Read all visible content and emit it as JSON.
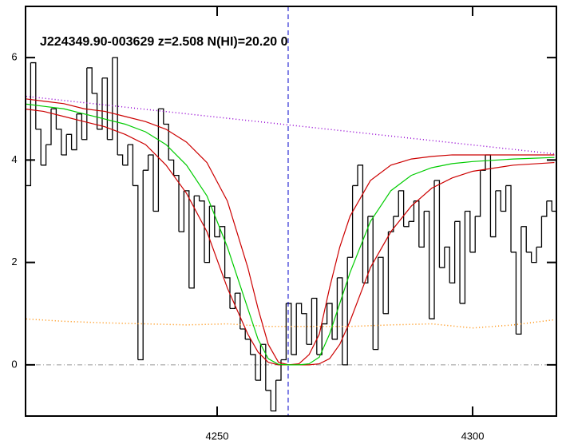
{
  "chart_data": {
    "type": "line",
    "title": "J224349.90-003629 z=2.508 N(HI)=20.20 0",
    "xlim": [
      4212.5,
      4316.4
    ],
    "ylim": [
      -1,
      7
    ],
    "xticks": [
      4250,
      4300
    ],
    "yticks": [
      0,
      2,
      4,
      6
    ],
    "hline": 0,
    "vline": 4263.9,
    "series": [
      {
        "type": "step",
        "color": "#000000",
        "dash": "none",
        "x": [
          4213,
          4214,
          4215,
          4216,
          4217,
          4218,
          4219,
          4220,
          4221,
          4222,
          4223,
          4224,
          4225,
          4226,
          4227,
          4228,
          4229,
          4230,
          4231,
          4232,
          4233,
          4234,
          4235,
          4236,
          4237,
          4238,
          4239,
          4240,
          4241,
          4242,
          4243,
          4244,
          4245,
          4246,
          4247,
          4248,
          4249,
          4250,
          4251,
          4252,
          4253,
          4254,
          4255,
          4256,
          4257,
          4258,
          4259,
          4260,
          4261,
          4262,
          4263,
          4264,
          4265,
          4266,
          4267,
          4268,
          4269,
          4270,
          4271,
          4272,
          4273,
          4274,
          4275,
          4276,
          4277,
          4278,
          4279,
          4280,
          4281,
          4282,
          4283,
          4284,
          4285,
          4286,
          4287,
          4288,
          4289,
          4290,
          4291,
          4292,
          4293,
          4294,
          4295,
          4296,
          4297,
          4298,
          4299,
          4300,
          4301,
          4302,
          4303,
          4304,
          4305,
          4306,
          4307,
          4308,
          4309,
          4310,
          4311,
          4312,
          4313,
          4314,
          4315,
          4316
        ],
        "values": [
          3.5,
          5.9,
          4.6,
          3.9,
          4.3,
          5.0,
          4.6,
          4.1,
          4.5,
          4.2,
          4.9,
          4.4,
          5.8,
          5.3,
          4.6,
          5.6,
          4.4,
          6.0,
          4.1,
          3.9,
          4.3,
          3.5,
          0.1,
          3.8,
          4.1,
          3.0,
          5.0,
          4.7,
          4.0,
          3.7,
          2.6,
          3.4,
          1.5,
          3.3,
          3.2,
          2.0,
          3.1,
          2.5,
          2.7,
          1.7,
          1.1,
          1.4,
          0.7,
          0.5,
          0.2,
          -0.3,
          0.4,
          -0.5,
          -0.9,
          -0.3,
          0.1,
          1.2,
          0.2,
          1.2,
          1.0,
          0.4,
          1.3,
          0.2,
          0.8,
          1.2,
          0.5,
          1.7,
          0.0,
          2.1,
          3.5,
          3.9,
          1.6,
          2.9,
          0.3,
          2.1,
          1.0,
          2.6,
          2.9,
          3.4,
          2.7,
          2.8,
          3.2,
          2.3,
          3.0,
          0.9,
          3.6,
          1.9,
          2.3,
          1.6,
          2.8,
          1.2,
          3.0,
          2.2,
          2.9,
          3.8,
          4.1,
          2.5,
          3.4,
          3.0,
          3.5,
          2.2,
          0.6,
          2.7,
          2.2,
          2.0,
          2.3,
          2.9,
          3.2,
          3.0
        ]
      },
      {
        "type": "line",
        "color": "#9400d3",
        "dash": "1 3",
        "x": [
          4212,
          4316
        ],
        "values": [
          5.25,
          4.12
        ]
      },
      {
        "type": "line",
        "color": "#ff8c00",
        "dash": "1 3",
        "x": [
          4212,
          4220,
          4228,
          4236,
          4244,
          4252,
          4260,
          4268,
          4276,
          4284,
          4292,
          4300,
          4308,
          4316
        ],
        "values": [
          0.9,
          0.85,
          0.82,
          0.8,
          0.78,
          0.8,
          0.75,
          0.75,
          0.75,
          0.78,
          0.8,
          0.72,
          0.78,
          0.88
        ]
      },
      {
        "type": "line",
        "color": "#cc0000",
        "dash": "none",
        "x": [
          4212,
          4216,
          4220,
          4224,
          4228,
          4232,
          4236,
          4240,
          4244,
          4248,
          4252,
          4256,
          4258,
          4260,
          4262,
          4264,
          4266,
          4268,
          4270,
          4272,
          4274,
          4276,
          4280,
          4284,
          4288,
          4292,
          4296,
          4300,
          4308,
          4316
        ],
        "values": [
          5.2,
          5.15,
          5.1,
          5.0,
          4.95,
          4.85,
          4.75,
          4.6,
          4.35,
          3.95,
          3.2,
          1.9,
          1.1,
          0.4,
          0.05,
          0.0,
          0.02,
          0.2,
          0.6,
          1.5,
          2.3,
          2.9,
          3.6,
          3.9,
          4.02,
          4.07,
          4.1,
          4.1,
          4.1,
          4.1
        ]
      },
      {
        "type": "line",
        "color": "#cc0000",
        "dash": "none",
        "x": [
          4212,
          4216,
          4220,
          4224,
          4228,
          4232,
          4236,
          4240,
          4244,
          4248,
          4252,
          4256,
          4258,
          4260,
          4262,
          4264,
          4266,
          4268,
          4270,
          4272,
          4274,
          4276,
          4280,
          4284,
          4288,
          4292,
          4296,
          4300,
          4308,
          4316
        ],
        "values": [
          5.0,
          4.95,
          4.85,
          4.75,
          4.65,
          4.5,
          4.3,
          3.9,
          3.35,
          2.6,
          1.5,
          0.6,
          0.25,
          0.05,
          0.0,
          0.0,
          0.0,
          0.0,
          0.02,
          0.12,
          0.4,
          0.85,
          1.9,
          2.6,
          3.1,
          3.45,
          3.65,
          3.78,
          3.9,
          3.95
        ]
      },
      {
        "type": "line",
        "color": "#00cc00",
        "dash": "none",
        "x": [
          4212,
          4216,
          4220,
          4224,
          4228,
          4232,
          4236,
          4240,
          4244,
          4248,
          4252,
          4256,
          4258,
          4260,
          4262,
          4264,
          4266,
          4268,
          4270,
          4272,
          4274,
          4276,
          4280,
          4284,
          4288,
          4292,
          4296,
          4300,
          4308,
          4316
        ],
        "values": [
          5.1,
          5.05,
          5.0,
          4.9,
          4.8,
          4.7,
          4.55,
          4.3,
          3.9,
          3.3,
          2.3,
          1.1,
          0.5,
          0.12,
          0.01,
          0.0,
          0.0,
          0.02,
          0.15,
          0.6,
          1.2,
          1.8,
          2.8,
          3.4,
          3.7,
          3.85,
          3.93,
          3.97,
          4.02,
          4.05
        ]
      }
    ]
  }
}
